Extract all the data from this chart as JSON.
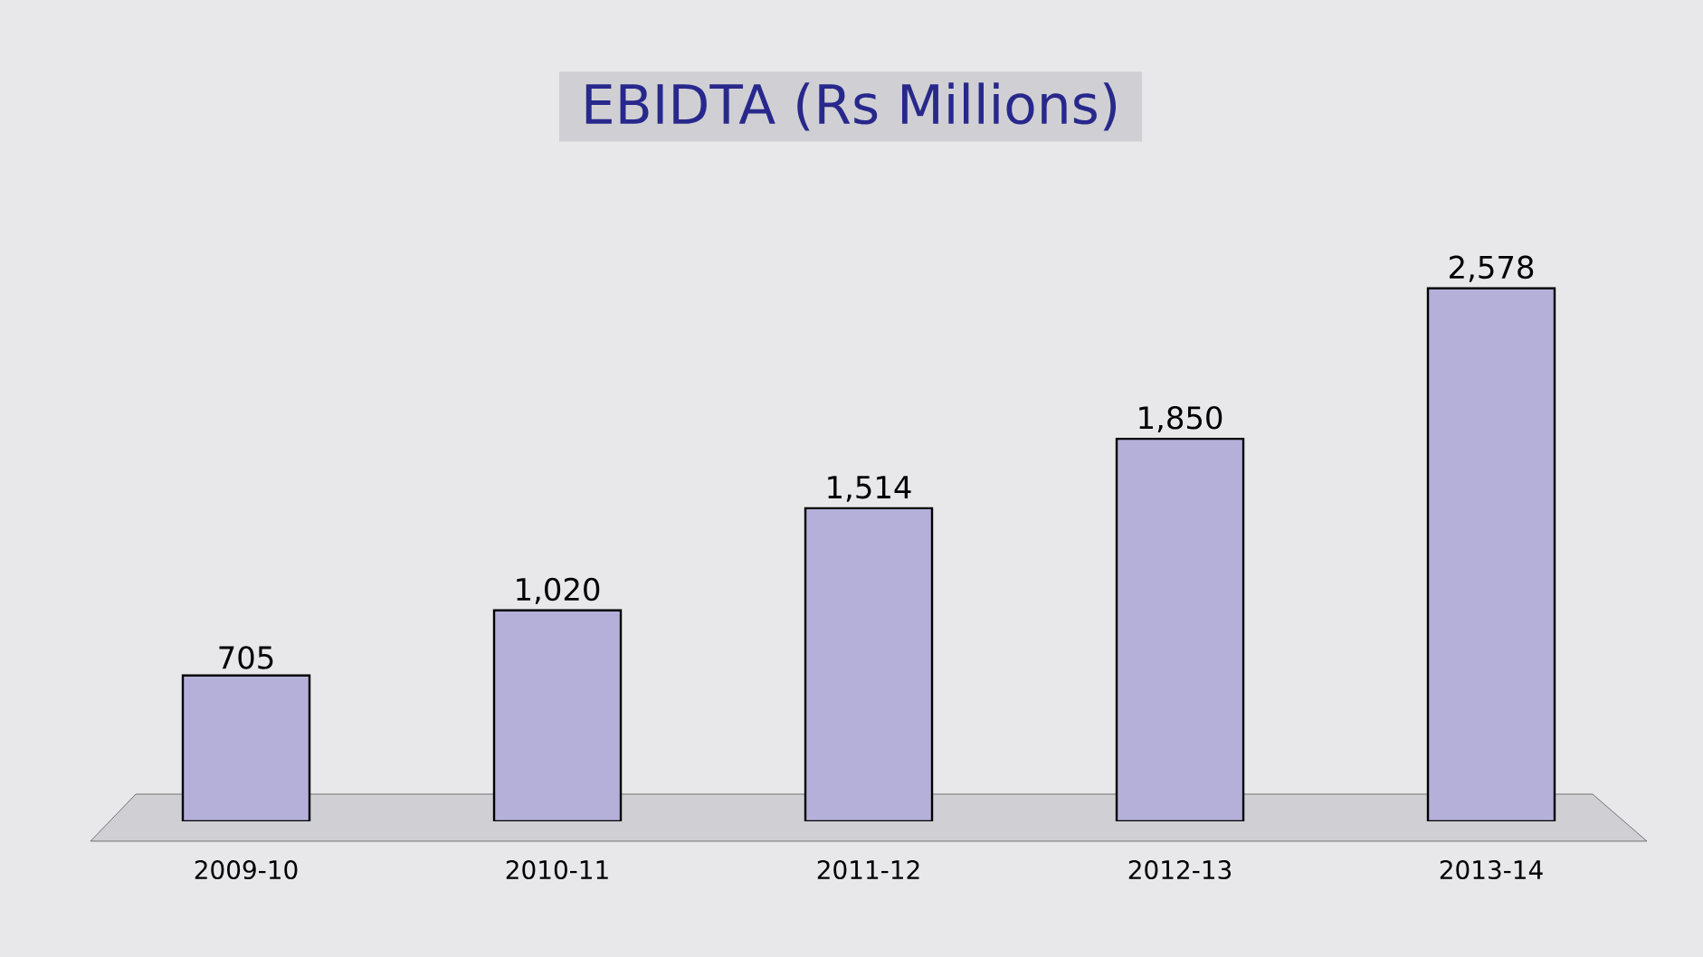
{
  "chart_data": {
    "type": "bar",
    "title": "EBIDTA (Rs Millions)",
    "categories": [
      "2009-10",
      "2010-11",
      "2011-12",
      "2012-13",
      "2013-14"
    ],
    "values": [
      705,
      1020,
      1514,
      1850,
      2578
    ],
    "value_labels": [
      "705",
      "1,020",
      "1,514",
      "1,850",
      "2,578"
    ],
    "color": "#b4b0da"
  }
}
